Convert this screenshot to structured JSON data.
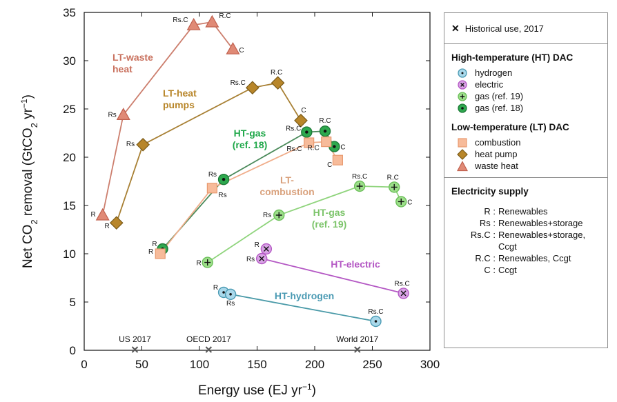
{
  "chart_data": {
    "type": "scatter",
    "xlabel_text": "Energy use  (EJ yr",
    "xlabel_sup": "−1",
    "xlabel_close": ")",
    "ylabel_text": "Net CO",
    "ylabel_sub": "2",
    "ylabel_mid": " removal  (GtCO",
    "ylabel_sub2": "2",
    "ylabel_mid2": " yr",
    "ylabel_sup": "−1",
    "ylabel_close": ")",
    "xlim": [
      0,
      300
    ],
    "ylim": [
      0,
      35
    ],
    "xticks": [
      0,
      50,
      100,
      150,
      200,
      250,
      300
    ],
    "yticks": [
      0,
      5,
      10,
      15,
      20,
      25,
      30,
      35
    ],
    "historical": [
      {
        "label": "US 2017",
        "x": 44
      },
      {
        "label": "OECD 2017",
        "x": 108
      },
      {
        "label": "World 2017",
        "x": 237
      }
    ],
    "series": [
      {
        "key": "lt-waste-heat",
        "marker": "triangle",
        "color": "#e08a76",
        "line": "#cc7e6d",
        "annotation": [
          "LT-waste",
          "heat"
        ],
        "ann_color": "#c9715e",
        "points": [
          {
            "label": "R",
            "x": 16,
            "y": 14.0
          },
          {
            "label": "Rs",
            "x": 34,
            "y": 24.4
          },
          {
            "label": "Rs.C",
            "x": 95,
            "y": 33.7
          },
          {
            "label": "R.C",
            "x": 111,
            "y": 34.0
          },
          {
            "label": "C",
            "x": 129,
            "y": 31.2
          }
        ]
      },
      {
        "key": "lt-heat-pumps",
        "marker": "diamond",
        "color": "#b8862a",
        "line": "#a88034",
        "annotation": [
          "LT-heat",
          "pumps"
        ],
        "ann_color": "#b8862a",
        "points": [
          {
            "label": "R",
            "x": 28,
            "y": 13.2
          },
          {
            "label": "Rs",
            "x": 51,
            "y": 21.3
          },
          {
            "label": "Rs.C",
            "x": 146,
            "y": 27.2
          },
          {
            "label": "R.C",
            "x": 168,
            "y": 27.7
          },
          {
            "label": "C",
            "x": 188,
            "y": 23.8
          }
        ]
      },
      {
        "key": "ht-gas-18",
        "marker": "dot",
        "color": "#2ea84e",
        "line": "#4a8a5a",
        "annotation": [
          "HT-gas",
          "(ref. 18)"
        ],
        "ann_color": "#20a84a",
        "points": [
          {
            "label": "R",
            "x": 68,
            "y": 10.5
          },
          {
            "label": "Rs",
            "x": 121,
            "y": 17.7
          },
          {
            "label": "Rs.C",
            "x": 193,
            "y": 22.6
          },
          {
            "label": "R.C",
            "x": 209,
            "y": 22.7
          },
          {
            "label": "C",
            "x": 217,
            "y": 21.1
          }
        ]
      },
      {
        "key": "lt-combustion",
        "marker": "square",
        "color": "#f7bb9a",
        "line": "#f0ad8a",
        "annotation": [
          "LT-",
          "combustion"
        ],
        "ann_color": "#d9a17c",
        "points": [
          {
            "label": "R",
            "x": 66,
            "y": 10.0
          },
          {
            "label": "Rs",
            "x": 111,
            "y": 16.8
          },
          {
            "label": "Rs.C",
            "x": 195,
            "y": 21.5
          },
          {
            "label": "R.C",
            "x": 210,
            "y": 21.6
          },
          {
            "label": "C",
            "x": 220,
            "y": 19.7
          }
        ]
      },
      {
        "key": "ht-gas-19",
        "marker": "plus",
        "color": "#9ddf8a",
        "line": "#8fd47c",
        "annotation": [
          "HT-gas",
          "(ref. 19)"
        ],
        "ann_color": "#7cc46a",
        "points": [
          {
            "label": "R",
            "x": 107,
            "y": 9.1
          },
          {
            "label": "Rs",
            "x": 169,
            "y": 14.0
          },
          {
            "label": "Rs.C",
            "x": 239,
            "y": 17.0
          },
          {
            "label": "R.C",
            "x": 269,
            "y": 16.9
          },
          {
            "label": "C",
            "x": 275,
            "y": 15.4
          }
        ]
      },
      {
        "key": "ht-electric",
        "marker": "cross",
        "color": "#d9a3e6",
        "line": "#b458c4",
        "annotation": [
          "HT-electric"
        ],
        "ann_color": "#b458c4",
        "points": [
          {
            "label": "R",
            "x": 158,
            "y": 10.5
          },
          {
            "label": "Rs",
            "x": 154,
            "y": 9.5
          },
          {
            "label": "Rs.C",
            "x": 277,
            "y": 5.9
          }
        ]
      },
      {
        "key": "ht-hydrogen",
        "marker": "circle",
        "color": "#a9d8ea",
        "line": "#4a9aa8",
        "annotation": [
          "HT-hydrogen"
        ],
        "ann_color": "#4a9ab3",
        "points": [
          {
            "label": "R",
            "x": 121,
            "y": 6.0
          },
          {
            "label": "Rs",
            "x": 127,
            "y": 5.8
          },
          {
            "label": "Rs.C",
            "x": 253,
            "y": 3.0
          }
        ]
      }
    ]
  },
  "legend": {
    "historical_label": "Historical use, 2017",
    "ht_title": "High-temperature (HT) DAC",
    "ht_items": [
      "hydrogen",
      "electric",
      "gas (ref. 19)",
      "gas (ref. 18)"
    ],
    "lt_title": "Low-temperature (LT) DAC",
    "lt_items": [
      "combustion",
      "heat pump",
      "waste heat"
    ],
    "supply_title": "Electricity supply",
    "supply": [
      {
        "code": "R :",
        "desc": "Renewables"
      },
      {
        "code": "Rs :",
        "desc": "Renewables+storage"
      },
      {
        "code": "Rs.C :",
        "desc": "Renewables+storage,"
      },
      {
        "code": "",
        "desc": "Ccgt"
      },
      {
        "code": "R.C :",
        "desc": "Renewables, Ccgt"
      },
      {
        "code": "C :",
        "desc": "Ccgt"
      }
    ]
  }
}
